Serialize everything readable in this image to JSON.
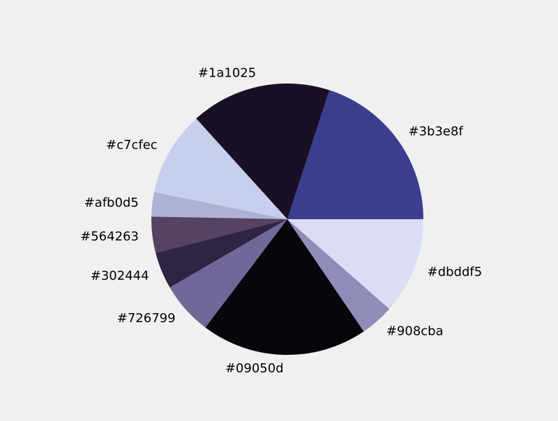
{
  "chart_data": {
    "type": "pie",
    "title": "",
    "start_angle_deg": 0,
    "direction": "counterclockwise",
    "legend": "none",
    "slices": [
      {
        "label": "#3b3e8f",
        "value": 20.0,
        "color": "#3b3e8f"
      },
      {
        "label": "#1a1025",
        "value": 16.7,
        "color": "#1a1025"
      },
      {
        "label": "#c7cfec",
        "value": 10.1,
        "color": "#c7cfec"
      },
      {
        "label": "#afb0d5",
        "value": 2.9,
        "color": "#afb0d5"
      },
      {
        "label": "#564263",
        "value": 4.3,
        "color": "#564263"
      },
      {
        "label": "#302444",
        "value": 4.4,
        "color": "#302444"
      },
      {
        "label": "#726799",
        "value": 6.3,
        "color": "#726799"
      },
      {
        "label": "#09050d",
        "value": 19.8,
        "color": "#09050d"
      },
      {
        "label": "#908cba",
        "value": 4.0,
        "color": "#908cba"
      },
      {
        "label": "#dbddf5",
        "value": 11.5,
        "color": "#dbddf5"
      }
    ]
  }
}
